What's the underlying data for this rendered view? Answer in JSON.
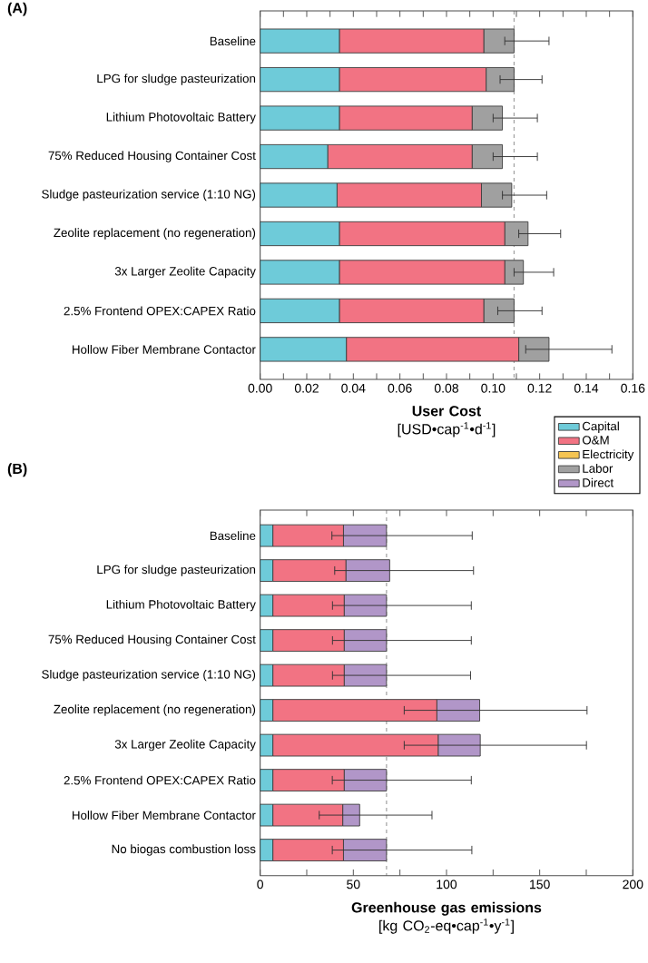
{
  "chart_data": [
    {
      "type": "bar",
      "orientation": "horizontal",
      "stacked": true,
      "title": "(A)",
      "xlabel": "**User Cost** [USD•cap$^{-1}$•d$^{-1}$]",
      "categories": [
        "Baseline",
        "LPG for sludge pasteurization",
        "Lithium Photovoltaic Battery",
        "75% Reduced Housing Container Cost",
        "Sludge pasteurization service (1:10 NG)",
        "Zeolite replacement (no regeneration)",
        "3x Larger Zeolite Capacity",
        "2.5% Frontend OPEX:CAPEX Ratio",
        "Hollow Fiber Membrane Contactor"
      ],
      "series": [
        {
          "name": "Capital",
          "color": "#6ecbd9",
          "values": [
            0.034,
            0.034,
            0.034,
            0.029,
            0.033,
            0.034,
            0.034,
            0.034,
            0.037
          ]
        },
        {
          "name": "O&M",
          "color": "#f27383",
          "values": [
            0.062,
            0.063,
            0.057,
            0.062,
            0.062,
            0.071,
            0.071,
            0.062,
            0.074
          ]
        },
        {
          "name": "Electricity",
          "color": "#f5c452",
          "values": [
            0,
            0,
            0,
            0,
            0,
            0,
            0,
            0,
            0
          ]
        },
        {
          "name": "Labor",
          "color": "#a0a0a0",
          "values": [
            0.013,
            0.012,
            0.013,
            0.013,
            0.013,
            0.01,
            0.008,
            0.013,
            0.013
          ],
          "errors": [
            [
              0.105,
              0.124
            ],
            [
              0.103,
              0.121
            ],
            [
              0.1,
              0.119
            ],
            [
              0.1,
              0.119
            ],
            [
              0.104,
              0.123
            ],
            [
              0.111,
              0.129
            ],
            [
              0.109,
              0.126
            ],
            [
              0.102,
              0.121
            ],
            [
              0.114,
              0.151
            ]
          ]
        },
        {
          "name": "Direct",
          "color": "#b196c8",
          "values": [
            0,
            0,
            0,
            0,
            0,
            0,
            0,
            0,
            0
          ]
        }
      ],
      "xlim": [
        0,
        0.16
      ],
      "xticks": [
        {
          "value": 0,
          "label": "0.00"
        },
        {
          "value": 0.01,
          "label": null
        },
        {
          "value": 0.02,
          "label": "0.02"
        },
        {
          "value": 0.03,
          "label": null
        },
        {
          "value": 0.04,
          "label": "0.04"
        },
        {
          "value": 0.05,
          "label": null
        },
        {
          "value": 0.06,
          "label": "0.06"
        },
        {
          "value": 0.07,
          "label": null
        },
        {
          "value": 0.08,
          "label": "0.08"
        },
        {
          "value": 0.09,
          "label": null
        },
        {
          "value": 0.1,
          "label": "0.10"
        },
        {
          "value": 0.11,
          "label": null
        },
        {
          "value": 0.12,
          "label": "0.12"
        },
        {
          "value": 0.13,
          "label": null
        },
        {
          "value": 0.14,
          "label": "0.14"
        },
        {
          "value": 0.15,
          "label": null
        },
        {
          "value": 0.16,
          "label": "0.16"
        }
      ],
      "ref_lines": [
        {
          "axis": "x",
          "value": 0.109,
          "color": "#a0a0a0",
          "line_style": "dashed"
        }
      ],
      "legend": "bottom right"
    },
    {
      "type": "bar",
      "orientation": "horizontal",
      "stacked": true,
      "title": "(B)",
      "xlabel": "**Greenhouse gas emissions** [kg CO$_{2}$-eq•cap$^{-1}$•y$^{-1}$]",
      "categories": [
        "Baseline",
        "LPG for sludge pasteurization",
        "Lithium Photovoltaic Battery",
        "75% Reduced Housing Container Cost",
        "Sludge pasteurization service (1:10 NG)",
        "Zeolite replacement (no regeneration)",
        "3x Larger Zeolite Capacity",
        "2.5% Frontend OPEX:CAPEX Ratio",
        "Hollow Fiber Membrane Contactor",
        "No biogas combustion loss"
      ],
      "series": [
        {
          "color": "#6ecbd9",
          "values": [
            6.8,
            6.8,
            6.8,
            6.8,
            6.8,
            6.8,
            6.8,
            6.8,
            6.8,
            6.8
          ]
        },
        {
          "color": "#f27383",
          "values": [
            37.9,
            39.2,
            38.3,
            38.3,
            38.3,
            88.0,
            88.7,
            38.3,
            37.5,
            37.9
          ]
        },
        {
          "color": "#f5c452",
          "values": [
            0,
            0,
            0,
            0,
            0,
            0,
            0,
            0,
            0,
            0
          ]
        },
        {
          "color": "#a0a0a0",
          "values": [
            0,
            0,
            0,
            0,
            0,
            0,
            0,
            0,
            0,
            0
          ]
        },
        {
          "color": "#b196c8",
          "values": [
            23.1,
            23.5,
            22.7,
            22.7,
            22.7,
            23.0,
            22.6,
            22.7,
            9.1,
            23.1
          ],
          "errors": [
            [
              38.5,
              113.8
            ],
            [
              40,
              114.5
            ],
            [
              38.8,
              113.3
            ],
            [
              38.8,
              113.3
            ],
            [
              38.8,
              112.9
            ],
            [
              77.3,
              175.4
            ],
            [
              77.3,
              175.1
            ],
            [
              38.7,
              113.3
            ],
            [
              31.7,
              92.2
            ],
            [
              38.7,
              113.6
            ]
          ]
        }
      ],
      "xlim": [
        0,
        200
      ],
      "xticks": [
        0,
        {
          "value": 25,
          "label": null
        },
        50,
        {
          "value": 75,
          "label": null
        },
        100,
        {
          "value": 125,
          "label": null
        },
        150,
        {
          "value": 175,
          "label": null
        },
        200
      ],
      "ref_lines": [
        {
          "axis": "x",
          "value": 67.8,
          "color": "#a0a0a0",
          "line_style": "dashed"
        }
      ]
    }
  ]
}
